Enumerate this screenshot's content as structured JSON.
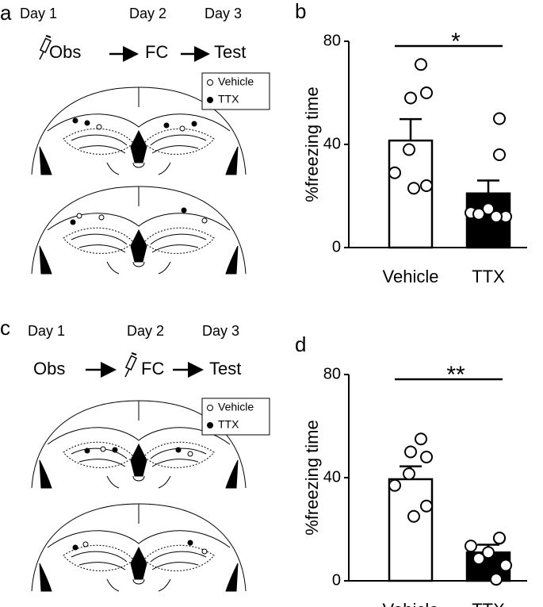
{
  "panels": [
    {
      "label": "a",
      "days": [
        "Day 1",
        "Day 2",
        "Day 3"
      ],
      "steps": [
        "Obs",
        "FC",
        "Test"
      ],
      "legend": [
        "Vehicle",
        "TTX"
      ]
    },
    {
      "label": "c",
      "days": [
        "Day 1",
        "Day 2",
        "Day 3"
      ],
      "steps": [
        "Obs",
        "FC",
        "Test"
      ],
      "legend": [
        "Vehicle",
        "TTX"
      ]
    }
  ],
  "chart_data": [
    {
      "type": "bar",
      "panel_label": "b",
      "ylabel": "%freezing time",
      "categories": [
        "Vehicle",
        "TTX"
      ],
      "values": [
        41.5,
        21
      ],
      "errors": [
        8.3,
        5
      ],
      "colors": [
        "#ffffff",
        "#000000"
      ],
      "points": [
        [
          71,
          58,
          60,
          38,
          29,
          24,
          23
        ],
        [
          50,
          36,
          13.5,
          15,
          13,
          12,
          12
        ]
      ],
      "ylim": [
        0,
        80
      ],
      "yticks": [
        0,
        40,
        80
      ],
      "significance": "*"
    },
    {
      "type": "bar",
      "panel_label": "d",
      "ylabel": "%freezing time",
      "categories": [
        "Vehicle",
        "TTX"
      ],
      "values": [
        39.4,
        11
      ],
      "errors": [
        5,
        3
      ],
      "colors": [
        "#ffffff",
        "#000000"
      ],
      "points": [
        [
          55,
          50,
          48,
          41.5,
          37,
          29,
          25
        ],
        [
          16.5,
          16.6,
          13.5,
          11,
          8.6,
          6,
          0.6
        ]
      ],
      "ylim": [
        0,
        80
      ],
      "yticks": [
        0,
        40,
        80
      ],
      "significance": "**"
    }
  ]
}
